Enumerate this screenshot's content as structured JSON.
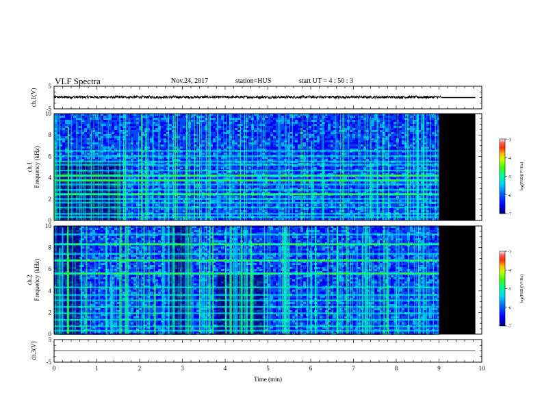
{
  "header": {
    "title": "VLF Spectra",
    "date": "Nov.24, 2017",
    "station": "station=HUS",
    "start_ut": "start  UT  =   4 : 50 : 3"
  },
  "colors": {
    "background": "#ffffff",
    "axes": "#000000",
    "no_data": "#000000",
    "colormap": [
      "#00007f",
      "#0000ff",
      "#0050ff",
      "#00c8ff",
      "#00ffb0",
      "#30ff40",
      "#c0ff00",
      "#ffff00",
      "#ff8000",
      "#ff0000",
      "#ffffff"
    ]
  },
  "chart_data": [
    {
      "type": "line",
      "panel": "ch1-waveform",
      "ylabel": "ch.1(V)",
      "ylim": [
        -5,
        5
      ],
      "yticks": [
        "5",
        "-5"
      ],
      "xlim": [
        0,
        10
      ],
      "trace": {
        "level": 0.2,
        "amplitude": 0.6,
        "t_start": 0,
        "t_end": 9.05
      },
      "line_after": {
        "level": 0,
        "t_start": 9.05,
        "t_end": 9.85
      }
    },
    {
      "type": "heatmap",
      "panel": "ch1-spectrogram",
      "ylabel": "ch.1\nFrequency  (kHz)",
      "ylim": [
        0,
        10
      ],
      "yticks": [
        "0",
        "2",
        "4",
        "6",
        "8",
        "10"
      ],
      "xlim": [
        0,
        10
      ],
      "data_until_min": 9.0,
      "no_data_until_min": 9.85,
      "colorbar": {
        "label": "log(PSD)(V²/Hz)",
        "range": [
          -7,
          -3
        ],
        "ticks": [
          "-3",
          "-4",
          "-5",
          "-6",
          "-7"
        ]
      },
      "tone_bands_khz": [
        0.3,
        0.6,
        1.2,
        1.65,
        2.0,
        2.45,
        2.85,
        3.35,
        3.75,
        4.2,
        4.65,
        5.2,
        5.5,
        6.0,
        6.5
      ],
      "strong_bands_khz": [
        2.45,
        3.75,
        4.2
      ]
    },
    {
      "type": "heatmap",
      "panel": "ch2-spectrogram",
      "ylabel": "ch.2\nFrequency  (kHz)",
      "ylim": [
        0,
        10
      ],
      "yticks": [
        "0",
        "2",
        "4",
        "6",
        "8",
        "10"
      ],
      "xlim": [
        0,
        10
      ],
      "data_until_min": 9.0,
      "no_data_until_min": 9.85,
      "colorbar": {
        "label": "log(PSD)(V²/Hz)",
        "range": [
          -7,
          -3
        ],
        "ticks": [
          "-3",
          "-4",
          "-5",
          "-6",
          "-7"
        ]
      },
      "tone_bands_khz": [
        0.3,
        0.7,
        1.3,
        1.9,
        2.5,
        3.1,
        3.6,
        4.3,
        5.6,
        6.8,
        7.4,
        8.3,
        9.2
      ],
      "strong_bands_khz": [
        5.6,
        6.8,
        8.3
      ]
    },
    {
      "type": "line",
      "panel": "ch3-waveform",
      "ylabel": "ch.3(V)",
      "ylim": [
        -5,
        5
      ],
      "yticks": [
        "5",
        "-5"
      ],
      "xlim": [
        0,
        10
      ],
      "trace": {
        "level": 0,
        "amplitude": 0,
        "t_start": 0,
        "t_end": 9.85
      },
      "xlabel": "Time  (min)",
      "xticks": [
        "0",
        "1",
        "2",
        "3",
        "4",
        "5",
        "6",
        "7",
        "8",
        "9",
        "10"
      ]
    }
  ]
}
